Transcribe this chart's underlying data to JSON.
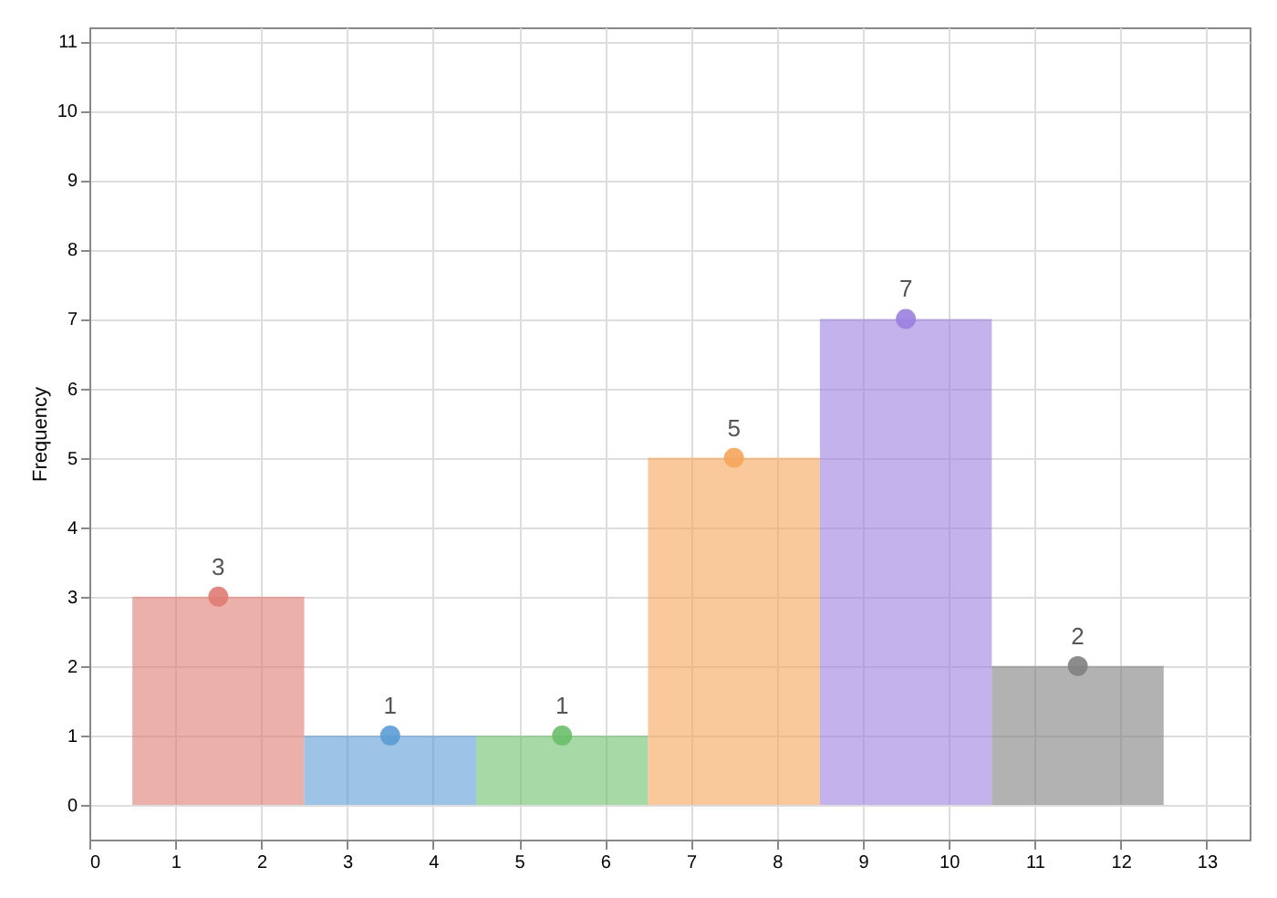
{
  "chart_data": {
    "type": "histogram",
    "ylabel": "Frequency",
    "bins": [
      0.5,
      2.5,
      4.5,
      6.5,
      8.5,
      10.5,
      12.5
    ],
    "values": [
      3,
      1,
      1,
      5,
      7,
      2
    ],
    "colors": [
      "#e07b73",
      "#5b9bd5",
      "#6abf69",
      "#f5a55a",
      "#9b7fe0",
      "#7f7f7f"
    ],
    "series": [
      {
        "type": "scatter",
        "marker": "circle",
        "data_labels": true,
        "x": [
          1.5,
          3.5,
          5.5,
          7.5,
          9.5,
          11.5
        ],
        "values": [
          3,
          1,
          1,
          5,
          7,
          2
        ],
        "colors": [
          "#e07b73",
          "#5b9bd5",
          "#6abf69",
          "#f5a55a",
          "#9b7fe0",
          "#7f7f7f"
        ]
      }
    ],
    "xlim": [
      0,
      13.5
    ],
    "xticks": [
      0,
      1,
      2,
      3,
      4,
      5,
      6,
      7,
      8,
      9,
      10,
      11,
      12,
      13
    ],
    "ylim": [
      -0.5,
      11.2
    ],
    "yticks": [
      0,
      1,
      2,
      3,
      4,
      5,
      6,
      7,
      8,
      9,
      10,
      11
    ],
    "grid": true,
    "legend": false
  }
}
